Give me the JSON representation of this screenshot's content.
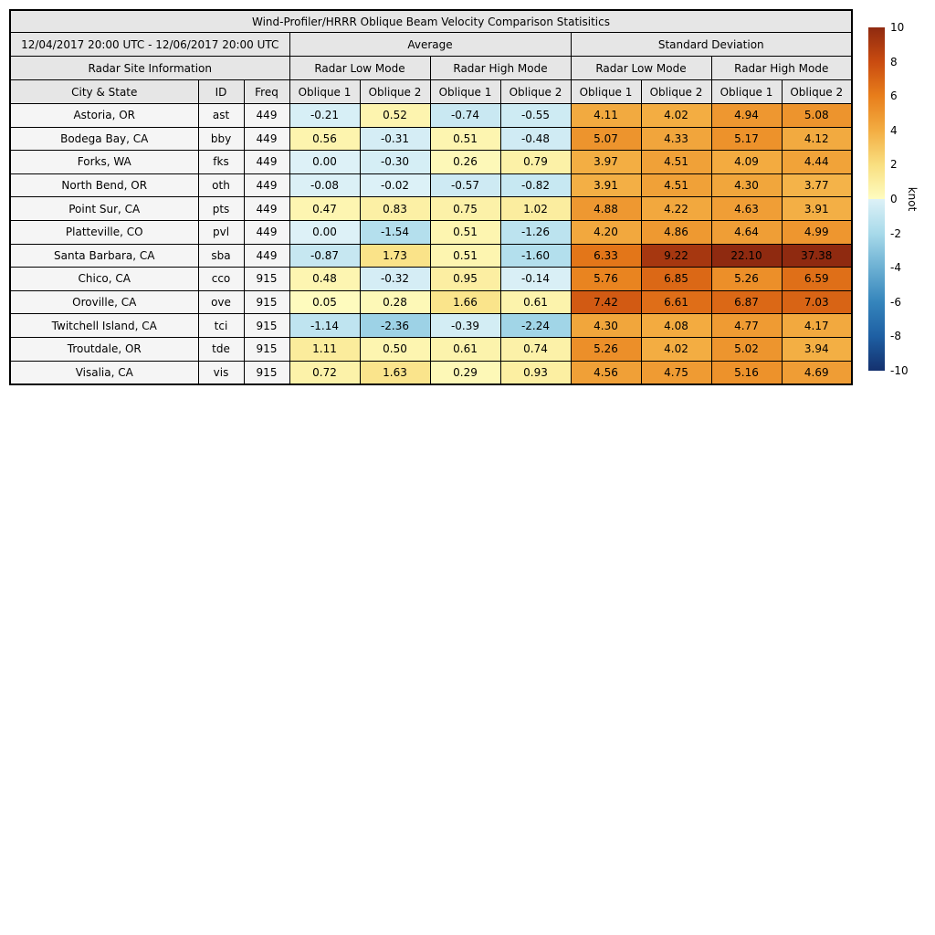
{
  "chart_data": {
    "type": "table",
    "title": "Wind-Profiler/HRRR Oblique Beam Velocity Comparison Statisitics",
    "date_range": "12/04/2017 20:00 UTC - 12/06/2017 20:00 UTC",
    "group_headers": {
      "average": "Average",
      "standard_deviation": "Standard Deviation"
    },
    "site_info_header": "Radar Site Information",
    "mode_headers": [
      "Radar Low Mode",
      "Radar High Mode",
      "Radar Low Mode",
      "Radar High Mode"
    ],
    "col_headers": [
      "City & State",
      "ID",
      "Freq",
      "Oblique 1",
      "Oblique 2",
      "Oblique 1",
      "Oblique 2",
      "Oblique 1",
      "Oblique 2",
      "Oblique 1",
      "Oblique 2"
    ],
    "rows": [
      {
        "city": "Astoria, OR",
        "id": "ast",
        "freq": "449",
        "values": [
          -0.21,
          0.52,
          -0.74,
          -0.55,
          4.11,
          4.02,
          4.94,
          5.08
        ]
      },
      {
        "city": "Bodega Bay, CA",
        "id": "bby",
        "freq": "449",
        "values": [
          0.56,
          -0.31,
          0.51,
          -0.48,
          5.07,
          4.33,
          5.17,
          4.12
        ]
      },
      {
        "city": "Forks, WA",
        "id": "fks",
        "freq": "449",
        "values": [
          0.0,
          -0.3,
          0.26,
          0.79,
          3.97,
          4.51,
          4.09,
          4.44
        ]
      },
      {
        "city": "North Bend, OR",
        "id": "oth",
        "freq": "449",
        "values": [
          -0.08,
          -0.02,
          -0.57,
          -0.82,
          3.91,
          4.51,
          4.3,
          3.77
        ]
      },
      {
        "city": "Point Sur, CA",
        "id": "pts",
        "freq": "449",
        "values": [
          0.47,
          0.83,
          0.75,
          1.02,
          4.88,
          4.22,
          4.63,
          3.91
        ]
      },
      {
        "city": "Platteville, CO",
        "id": "pvl",
        "freq": "449",
        "values": [
          0.0,
          -1.54,
          0.51,
          -1.26,
          4.2,
          4.86,
          4.64,
          4.99
        ]
      },
      {
        "city": "Santa Barbara, CA",
        "id": "sba",
        "freq": "449",
        "values": [
          -0.87,
          1.73,
          0.51,
          -1.6,
          6.33,
          9.22,
          22.1,
          37.38
        ]
      },
      {
        "city": "Chico, CA",
        "id": "cco",
        "freq": "915",
        "values": [
          0.48,
          -0.32,
          0.95,
          -0.14,
          5.76,
          6.85,
          5.26,
          6.59
        ]
      },
      {
        "city": "Oroville, CA",
        "id": "ove",
        "freq": "915",
        "values": [
          0.05,
          0.28,
          1.66,
          0.61,
          7.42,
          6.61,
          6.87,
          7.03
        ]
      },
      {
        "city": "Twitchell Island, CA",
        "id": "tci",
        "freq": "915",
        "values": [
          -1.14,
          -2.36,
          -0.39,
          -2.24,
          4.3,
          4.08,
          4.77,
          4.17
        ]
      },
      {
        "city": "Troutdale, OR",
        "id": "tde",
        "freq": "915",
        "values": [
          1.11,
          0.5,
          0.61,
          0.74,
          5.26,
          4.02,
          5.02,
          3.94
        ]
      },
      {
        "city": "Visalia, CA",
        "id": "vis",
        "freq": "915",
        "values": [
          0.72,
          1.63,
          0.29,
          0.93,
          4.56,
          4.75,
          5.16,
          4.69
        ]
      }
    ],
    "colorbar": {
      "label": "knot",
      "ticks": [
        10,
        8,
        6,
        4,
        2,
        0,
        -2,
        -4,
        -6,
        -8,
        -10
      ],
      "vmin": -10,
      "vmax": 10
    },
    "colormap": {
      "neg_stops": [
        {
          "v": -10,
          "c": "#14316e"
        },
        {
          "v": -8,
          "c": "#1e5fa3"
        },
        {
          "v": -6,
          "c": "#3585bc"
        },
        {
          "v": -4,
          "c": "#6cb0d3"
        },
        {
          "v": -2,
          "c": "#a8daea"
        },
        {
          "v": 0,
          "c": "#ddf1f7"
        }
      ],
      "pos_stops": [
        {
          "v": 0,
          "c": "#fefcc0"
        },
        {
          "v": 2,
          "c": "#f9df80"
        },
        {
          "v": 4,
          "c": "#f3ad42"
        },
        {
          "v": 6,
          "c": "#e87e1b"
        },
        {
          "v": 8,
          "c": "#c94b10"
        },
        {
          "v": 10,
          "c": "#8f2a10"
        }
      ]
    }
  }
}
